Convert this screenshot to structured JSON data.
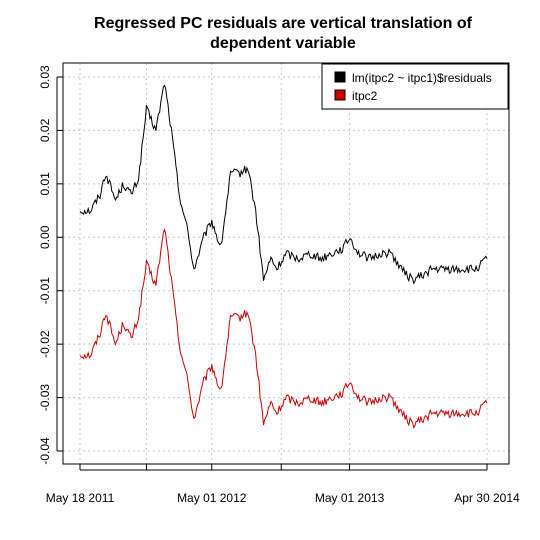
{
  "chart_data": {
    "type": "line",
    "title": "Regressed PC residuals are vertical translation of dependent variable",
    "title_lines": [
      "Regressed PC residuals are vertical translation of",
      "dependent variable"
    ],
    "xlabel": "",
    "ylabel": "",
    "x_ticks": [
      "May 18 2011",
      "May 01 2012",
      "May 01 2013",
      "Apr 30 2014"
    ],
    "y_ticks": [
      "0.03",
      "0.02",
      "0.01",
      "0.00",
      "-0.01",
      "-0.02",
      "-0.03",
      "-0.04"
    ],
    "y_tick_values": [
      0.03,
      0.02,
      0.01,
      0.0,
      -0.01,
      -0.02,
      -0.03,
      -0.04
    ],
    "xlim": [
      "2011-05-18",
      "2014-04-30"
    ],
    "ylim": [
      -0.042,
      0.031
    ],
    "grid": true,
    "legend_position": "top-right",
    "x": [
      "2011-05-18",
      "2011-06-15",
      "2011-07-10",
      "2011-07-25",
      "2011-08-20",
      "2011-09-10",
      "2011-10-01",
      "2011-10-20",
      "2011-11-10",
      "2011-12-05",
      "2011-12-28",
      "2012-01-15",
      "2012-02-05",
      "2012-02-25",
      "2012-03-15",
      "2012-04-10",
      "2012-05-01",
      "2012-05-25",
      "2012-06-20",
      "2012-07-15",
      "2012-08-05",
      "2012-08-25",
      "2012-09-15",
      "2012-10-05",
      "2012-10-20",
      "2012-11-15",
      "2012-12-15",
      "2013-01-15",
      "2013-02-15",
      "2013-03-15",
      "2013-04-15",
      "2013-05-01",
      "2013-05-25",
      "2013-06-25",
      "2013-07-25",
      "2013-08-20",
      "2013-09-15",
      "2013-10-15",
      "2013-11-15",
      "2013-12-01",
      "2014-01-05",
      "2014-02-05",
      "2014-03-05",
      "2014-04-01",
      "2014-04-30"
    ],
    "series": [
      {
        "name": "lm(itpc2 ~ itpc1)$residuals",
        "color": "#000000",
        "values": [
          0.005,
          0.005,
          0.008,
          0.012,
          0.007,
          0.01,
          0.008,
          0.011,
          0.024,
          0.02,
          0.029,
          0.02,
          0.008,
          0.002,
          -0.006,
          0.0,
          0.003,
          -0.002,
          0.012,
          0.012,
          0.013,
          0.005,
          -0.008,
          -0.004,
          -0.006,
          -0.003,
          -0.004,
          -0.003,
          -0.004,
          -0.003,
          -0.002,
          0.0,
          -0.003,
          -0.004,
          -0.003,
          -0.003,
          -0.006,
          -0.008,
          -0.007,
          -0.006,
          -0.006,
          -0.006,
          -0.006,
          -0.006,
          -0.004
        ]
      },
      {
        "name": "itpc2",
        "color": "#cc0000",
        "values": [
          -0.022,
          -0.022,
          -0.018,
          -0.014,
          -0.02,
          -0.016,
          -0.019,
          -0.015,
          -0.005,
          -0.009,
          0.002,
          -0.008,
          -0.02,
          -0.026,
          -0.034,
          -0.027,
          -0.024,
          -0.029,
          -0.015,
          -0.015,
          -0.014,
          -0.022,
          -0.035,
          -0.031,
          -0.033,
          -0.03,
          -0.031,
          -0.03,
          -0.031,
          -0.03,
          -0.029,
          -0.027,
          -0.03,
          -0.031,
          -0.03,
          -0.03,
          -0.033,
          -0.035,
          -0.034,
          -0.033,
          -0.033,
          -0.033,
          -0.033,
          -0.033,
          -0.031
        ]
      }
    ]
  }
}
